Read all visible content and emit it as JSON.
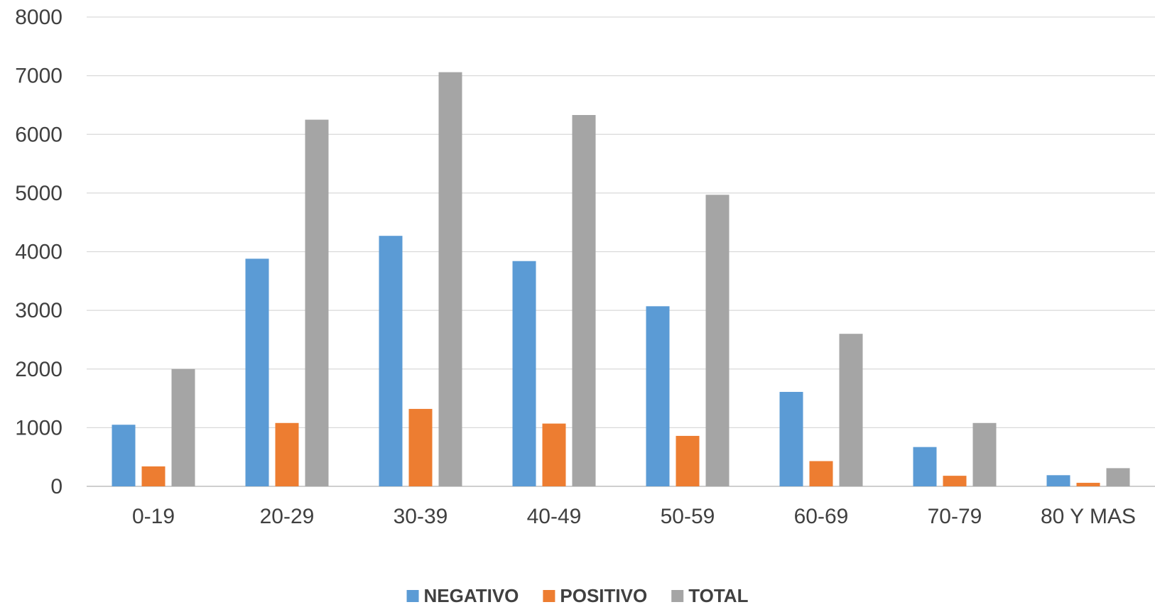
{
  "chart_data": {
    "type": "bar",
    "title": "",
    "xlabel": "",
    "ylabel": "",
    "ylim": [
      0,
      8000
    ],
    "yticks": [
      0,
      1000,
      2000,
      3000,
      4000,
      5000,
      6000,
      7000,
      8000
    ],
    "grid": true,
    "legend_position": "bottom",
    "categories": [
      "0-19",
      "20-29",
      "30-39",
      "40-49",
      "50-59",
      "60-69",
      "70-79",
      "80 Y MAS"
    ],
    "series": [
      {
        "name": "NEGATIVO",
        "color": "#5B9BD5",
        "values": [
          1050,
          3880,
          4270,
          3840,
          3070,
          1610,
          670,
          190
        ]
      },
      {
        "name": "POSITIVO",
        "color": "#ED7D31",
        "values": [
          340,
          1080,
          1320,
          1070,
          860,
          430,
          180,
          60
        ]
      },
      {
        "name": "TOTAL",
        "color": "#A5A5A5",
        "values": [
          2000,
          6250,
          7060,
          6330,
          4970,
          2600,
          1080,
          310
        ]
      }
    ]
  }
}
